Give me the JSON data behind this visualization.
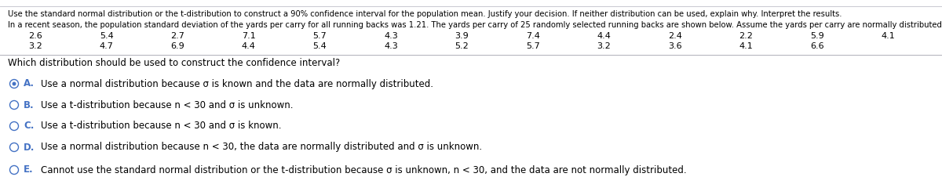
{
  "title_line": "Use the standard normal distribution or the t-distribution to construct a 90% confidence interval for the population mean. Justify your decision. If neither distribution can be used, explain why. Interpret the results.",
  "intro_line": "In a recent season, the population standard deviation of the yards per carry for all running backs was 1.21. The yards per carry of 25 randomly selected running backs are shown below. Assume the yards per carry are normally distributed.",
  "data_row1": [
    "2.6",
    "5.4",
    "2.7",
    "7.1",
    "5.7",
    "4.3",
    "3.9",
    "7.4",
    "4.4",
    "2.4",
    "2.2",
    "5.9",
    "4.1"
  ],
  "data_row2": [
    "3.2",
    "4.7",
    "6.9",
    "4.4",
    "5.4",
    "4.3",
    "5.2",
    "5.7",
    "3.2",
    "3.6",
    "4.1",
    "6.6",
    ""
  ],
  "question": "Which distribution should be used to construct the confidence interval?",
  "options": [
    {
      "label": "A.",
      "text": "Use a normal distribution because σ is known and the data are normally distributed.",
      "selected": true
    },
    {
      "label": "B.",
      "text": "Use a t-distribution because n < 30 and σ is unknown.",
      "selected": false
    },
    {
      "label": "C.",
      "text": "Use a t-distribution because n < 30 and σ is known.",
      "selected": false
    },
    {
      "label": "D.",
      "text": "Use a normal distribution because n < 30, the data are normally distributed and σ is unknown.",
      "selected": false
    },
    {
      "label": "E.",
      "text": "Cannot use the standard normal distribution or the t-distribution because σ is unknown, n < 30, and the data are not normally distributed.",
      "selected": false
    }
  ],
  "bg_color": "#ffffff",
  "text_color": "#000000",
  "option_label_color": "#4472c4",
  "font_size_title": 7.2,
  "font_size_data": 8.0,
  "font_size_question": 8.5,
  "font_size_options": 8.5,
  "n_cols": 13,
  "fig_width": 12.0,
  "fig_height": 2.49,
  "dpi": 100
}
